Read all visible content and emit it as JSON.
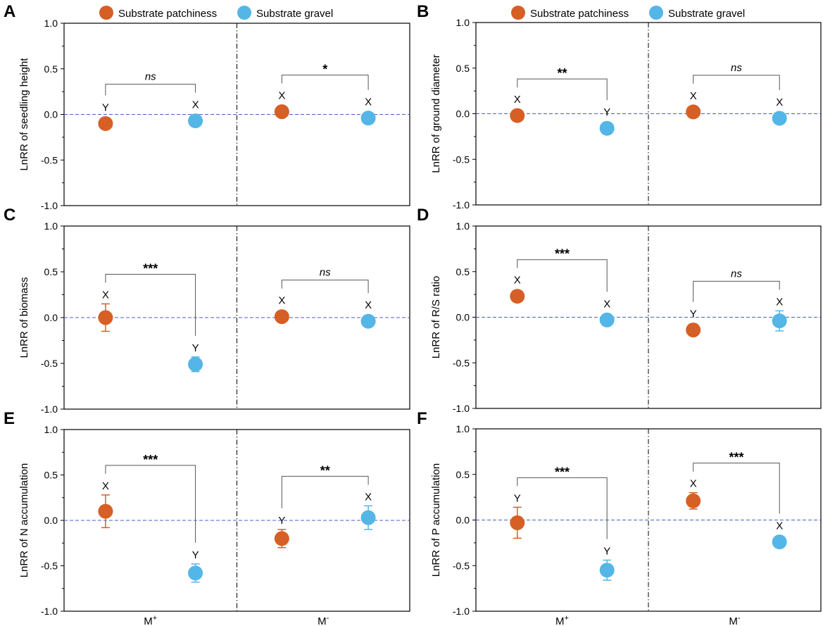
{
  "colors": {
    "patchiness": "#D65F26",
    "gravel": "#54B6E6",
    "zero_line": "#4C5FC0",
    "axis": "#000000",
    "bracket": "#555555"
  },
  "legend": [
    {
      "key": "patchiness",
      "label": "Substrate patchiness"
    },
    {
      "key": "gravel",
      "label": "Substrate gravel"
    }
  ],
  "x_groups": [
    {
      "base": "M",
      "sup": "+"
    },
    {
      "base": "M",
      "sup": "-"
    }
  ],
  "chart_data": [
    {
      "type": "scatter",
      "panel": "A",
      "ylabel": "LnRR of seedling height",
      "ylim": [
        -1.0,
        1.0
      ],
      "yticks": [
        "1.0",
        "0.5",
        "0.0",
        "-0.5",
        "-1.0"
      ],
      "series": [
        {
          "name": "Substrate patchiness",
          "values": [
            -0.1,
            0.03
          ],
          "err": [
            0.02,
            0.02
          ],
          "letters": [
            "Y",
            "X"
          ]
        },
        {
          "name": "Substrate gravel",
          "values": [
            -0.07,
            -0.04
          ],
          "err": [
            0.02,
            0.02
          ],
          "letters": [
            "X",
            "X"
          ]
        }
      ],
      "significance": [
        "ns",
        "*"
      ]
    },
    {
      "type": "scatter",
      "panel": "B",
      "ylabel": "LnRR of ground diameter",
      "ylim": [
        -1.0,
        1.0
      ],
      "yticks": [
        "1.0",
        "0.5",
        "0.0",
        "-0.5",
        "-1.0"
      ],
      "series": [
        {
          "name": "Substrate patchiness",
          "values": [
            -0.02,
            0.02
          ],
          "err": [
            0.02,
            0.02
          ],
          "letters": [
            "X",
            "X"
          ]
        },
        {
          "name": "Substrate gravel",
          "values": [
            -0.16,
            -0.05
          ],
          "err": [
            0.02,
            0.02
          ],
          "letters": [
            "Y",
            "X"
          ]
        }
      ],
      "significance": [
        "**",
        "ns"
      ]
    },
    {
      "type": "scatter",
      "panel": "C",
      "ylabel": "LnRR of biomass",
      "ylim": [
        -1.0,
        1.0
      ],
      "yticks": [
        "1.0",
        "0.5",
        "0.0",
        "-0.5",
        "-1.0"
      ],
      "series": [
        {
          "name": "Substrate patchiness",
          "values": [
            0.0,
            0.01
          ],
          "err": [
            0.15,
            0.03
          ],
          "letters": [
            "X",
            "X"
          ]
        },
        {
          "name": "Substrate gravel",
          "values": [
            -0.51,
            -0.04
          ],
          "err": [
            0.08,
            0.05
          ],
          "letters": [
            "Y",
            "X"
          ]
        }
      ],
      "significance": [
        "***",
        "ns"
      ]
    },
    {
      "type": "scatter",
      "panel": "D",
      "ylabel": "LnRR of R/S ratio",
      "ylim": [
        -1.0,
        1.0
      ],
      "yticks": [
        "1.0",
        "0.5",
        "0.0",
        "-0.5",
        "-1.0"
      ],
      "series": [
        {
          "name": "Substrate patchiness",
          "values": [
            0.23,
            -0.14
          ],
          "err": [
            0.03,
            0.06
          ],
          "letters": [
            "X",
            "Y"
          ]
        },
        {
          "name": "Substrate gravel",
          "values": [
            -0.03,
            -0.04
          ],
          "err": [
            0.03,
            0.11
          ],
          "letters": [
            "X",
            "X"
          ]
        }
      ],
      "significance": [
        "***",
        "ns"
      ]
    },
    {
      "type": "scatter",
      "panel": "E",
      "ylabel": "LnRR of N accumulation",
      "ylim": [
        -1.0,
        1.0
      ],
      "yticks": [
        "1.0",
        "0.5",
        "0.0",
        "-0.5",
        "-1.0"
      ],
      "series": [
        {
          "name": "Substrate patchiness",
          "values": [
            0.1,
            -0.2
          ],
          "err": [
            0.18,
            0.1
          ],
          "letters": [
            "X",
            "Y"
          ]
        },
        {
          "name": "Substrate gravel",
          "values": [
            -0.58,
            0.03
          ],
          "err": [
            0.1,
            0.13
          ],
          "letters": [
            "Y",
            "X"
          ]
        }
      ],
      "significance": [
        "***",
        "**"
      ]
    },
    {
      "type": "scatter",
      "panel": "F",
      "ylabel": "LnRR of P accumulation",
      "ylim": [
        -1.0,
        1.0
      ],
      "yticks": [
        "1.0",
        "0.5",
        "0.0",
        "-0.5",
        "-1.0"
      ],
      "series": [
        {
          "name": "Substrate patchiness",
          "values": [
            -0.03,
            0.21
          ],
          "err": [
            0.17,
            0.09
          ],
          "letters": [
            "Y",
            "X"
          ]
        },
        {
          "name": "Substrate gravel",
          "values": [
            -0.55,
            -0.24
          ],
          "err": [
            0.11,
            0.03
          ],
          "letters": [
            "Y",
            "X"
          ]
        }
      ],
      "significance": [
        "***",
        "***"
      ]
    }
  ]
}
